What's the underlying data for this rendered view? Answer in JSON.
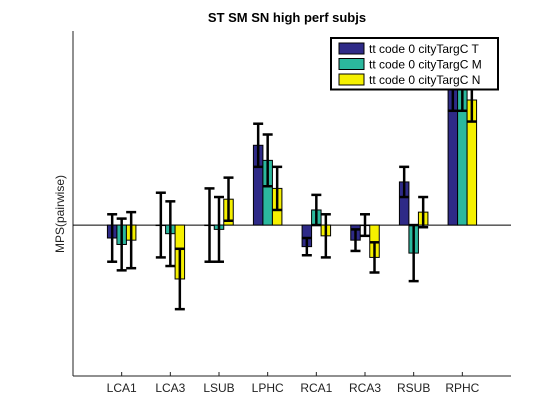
{
  "chart_data": {
    "type": "bar",
    "title": "ST SM SN high perf subjs",
    "xlabel": "",
    "ylabel": "MPS(pairwise)",
    "categories": [
      "LCA1",
      "LCA3",
      "LSUB",
      "LPHC",
      "RCA1",
      "RCA3",
      "RSUB",
      "RPHC"
    ],
    "ylim": [
      -0.7,
      0.9
    ],
    "yticks_visible": false,
    "grid": false,
    "legend_position": "top-right",
    "series": [
      {
        "name": "tt code 0 cityTargC T",
        "color": "#2e2a87",
        "values": [
          -0.06,
          -0.0,
          -0.0,
          0.37,
          -0.1,
          -0.07,
          0.2,
          0.65
        ],
        "errors": [
          0.11,
          0.15,
          0.17,
          0.1,
          0.04,
          0.05,
          0.07,
          0.12
        ]
      },
      {
        "name": "tt code 0 cityTargC M",
        "color": "#2bb89e",
        "values": [
          -0.09,
          -0.04,
          -0.02,
          0.3,
          0.07,
          -0.0,
          -0.13,
          0.63
        ],
        "errors": [
          0.12,
          0.15,
          0.15,
          0.12,
          0.07,
          0.05,
          0.13,
          0.1
        ]
      },
      {
        "name": "tt code 0 cityTargC N",
        "color": "#f5f000",
        "values": [
          -0.07,
          -0.25,
          0.12,
          0.17,
          -0.05,
          -0.15,
          0.06,
          0.58
        ],
        "errors": [
          0.13,
          0.14,
          0.1,
          0.1,
          0.1,
          0.07,
          0.07,
          0.1
        ]
      }
    ],
    "markers": [
      {
        "category": "RPHC",
        "value": 0.85,
        "color": "#1a1aff",
        "symbol": "asterisk"
      }
    ],
    "zero_line": true
  }
}
